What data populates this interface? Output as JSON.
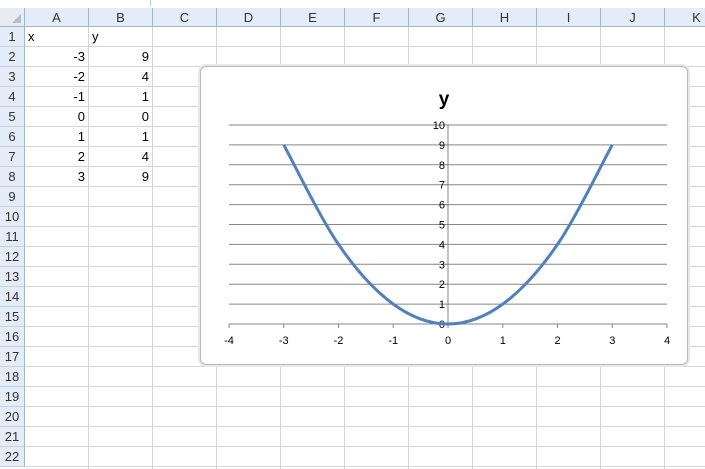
{
  "columns": [
    "A",
    "B",
    "C",
    "D",
    "E",
    "F",
    "G",
    "H",
    "I",
    "J",
    "K"
  ],
  "rows": [
    "1",
    "2",
    "3",
    "4",
    "5",
    "6",
    "7",
    "8",
    "9",
    "10",
    "11",
    "12",
    "13",
    "14",
    "15",
    "16",
    "17",
    "18",
    "19",
    "20",
    "21",
    "22"
  ],
  "cells": {
    "A1": "x",
    "B1": "y",
    "A2": "-3",
    "B2": "9",
    "A3": "-2",
    "B3": "4",
    "A4": "-1",
    "B4": "1",
    "A5": "0",
    "B5": "0",
    "A6": "1",
    "B6": "1",
    "A7": "2",
    "B7": "4",
    "A8": "3",
    "B8": "9"
  },
  "chart_data": {
    "type": "line",
    "title": "y",
    "x": [
      -3,
      -2,
      -1,
      0,
      1,
      2,
      3
    ],
    "series": [
      {
        "values": [
          9,
          4,
          1,
          0,
          1,
          4,
          9
        ]
      }
    ],
    "smooth": true,
    "xlim": [
      -4,
      4
    ],
    "ylim": [
      0,
      10
    ],
    "x_ticks": [
      "-4",
      "-3",
      "-2",
      "-1",
      "0",
      "1",
      "2",
      "3",
      "4"
    ],
    "y_ticks": [
      "0",
      "1",
      "2",
      "3",
      "4",
      "5",
      "6",
      "7",
      "8",
      "9",
      "10"
    ],
    "grid": "horizontal",
    "legend": "none",
    "line_color": "#4f81bd"
  }
}
